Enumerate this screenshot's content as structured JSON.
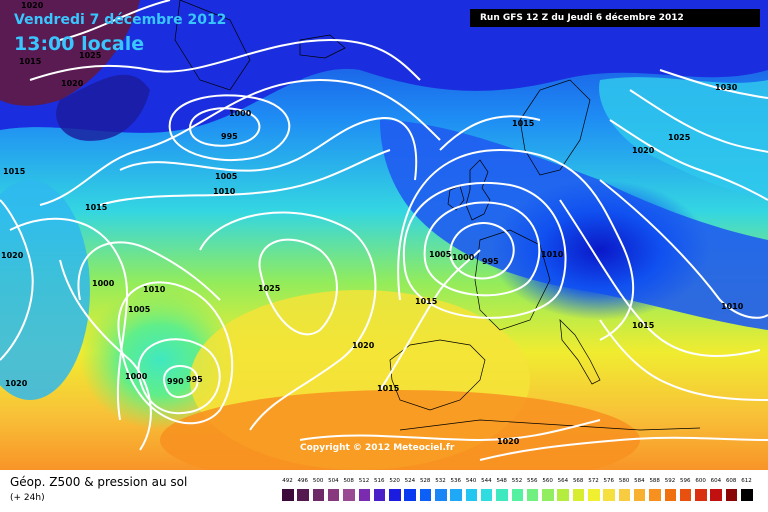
{
  "header": {
    "date": "Vendredi 7 décembre 2012",
    "time": "13:00 locale",
    "run": "Run GFS 12 Z du Jeudi 6 décembre 2012"
  },
  "isobar_labels": [
    "1020",
    "1025",
    "1015",
    "1020",
    "1015",
    "1000",
    "995",
    "1005",
    "1010",
    "1015",
    "1020",
    "1000",
    "1010",
    "1005",
    "1000",
    "990",
    "995",
    "1020",
    "1025",
    "1020",
    "1015",
    "1005",
    "1000",
    "995",
    "1010",
    "1015",
    "1015",
    "1020",
    "1025",
    "1030",
    "1010",
    "1015",
    "1020"
  ],
  "copyright": "Copyright © 2012 Meteociel.fr",
  "footer": {
    "title": "Géop. Z500 & pression au sol",
    "subtitle": "(+ 24h)"
  },
  "scale": {
    "ticks": [
      "492",
      "496",
      "500",
      "504",
      "508",
      "512",
      "516",
      "520",
      "524",
      "528",
      "532",
      "536",
      "540",
      "544",
      "548",
      "552",
      "556",
      "560",
      "564",
      "568",
      "572",
      "576",
      "580",
      "584",
      "588",
      "592",
      "596",
      "600",
      "604",
      "608",
      "612"
    ],
    "colors": [
      "#3b0a3b",
      "#541a50",
      "#6e2a66",
      "#88387c",
      "#9a4a92",
      "#7a2bb0",
      "#4a1fc8",
      "#1c1ce0",
      "#0a3af0",
      "#0d60f5",
      "#1a86f5",
      "#1fa8f5",
      "#23c6f0",
      "#30dce0",
      "#40e8c0",
      "#55f0a0",
      "#70f080",
      "#90ee60",
      "#b4ec40",
      "#d8ec30",
      "#f0f030",
      "#f5e040",
      "#f8cc40",
      "#f8b030",
      "#f89020",
      "#f07010",
      "#e85010",
      "#d83010",
      "#c01010",
      "#8a0606",
      "#000000"
    ]
  }
}
